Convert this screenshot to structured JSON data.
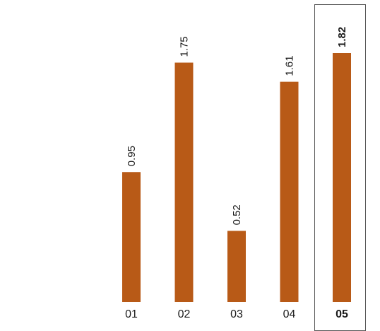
{
  "chart_data": {
    "type": "bar",
    "categories": [
      "01",
      "02",
      "03",
      "04",
      "05"
    ],
    "values": [
      0.95,
      1.75,
      0.52,
      1.61,
      1.82
    ],
    "value_labels": [
      "0.95",
      "1.75",
      "0.52",
      "1.61",
      "1.82"
    ],
    "highlighted_category": "05",
    "ylim": [
      0,
      1.82
    ],
    "grid": false,
    "legend": "none",
    "title": "",
    "xlabel": "",
    "ylabel": "",
    "colors": {
      "bar": "#b85a17",
      "highlight_frame": "#555555",
      "text": "#1a1a1a"
    }
  }
}
